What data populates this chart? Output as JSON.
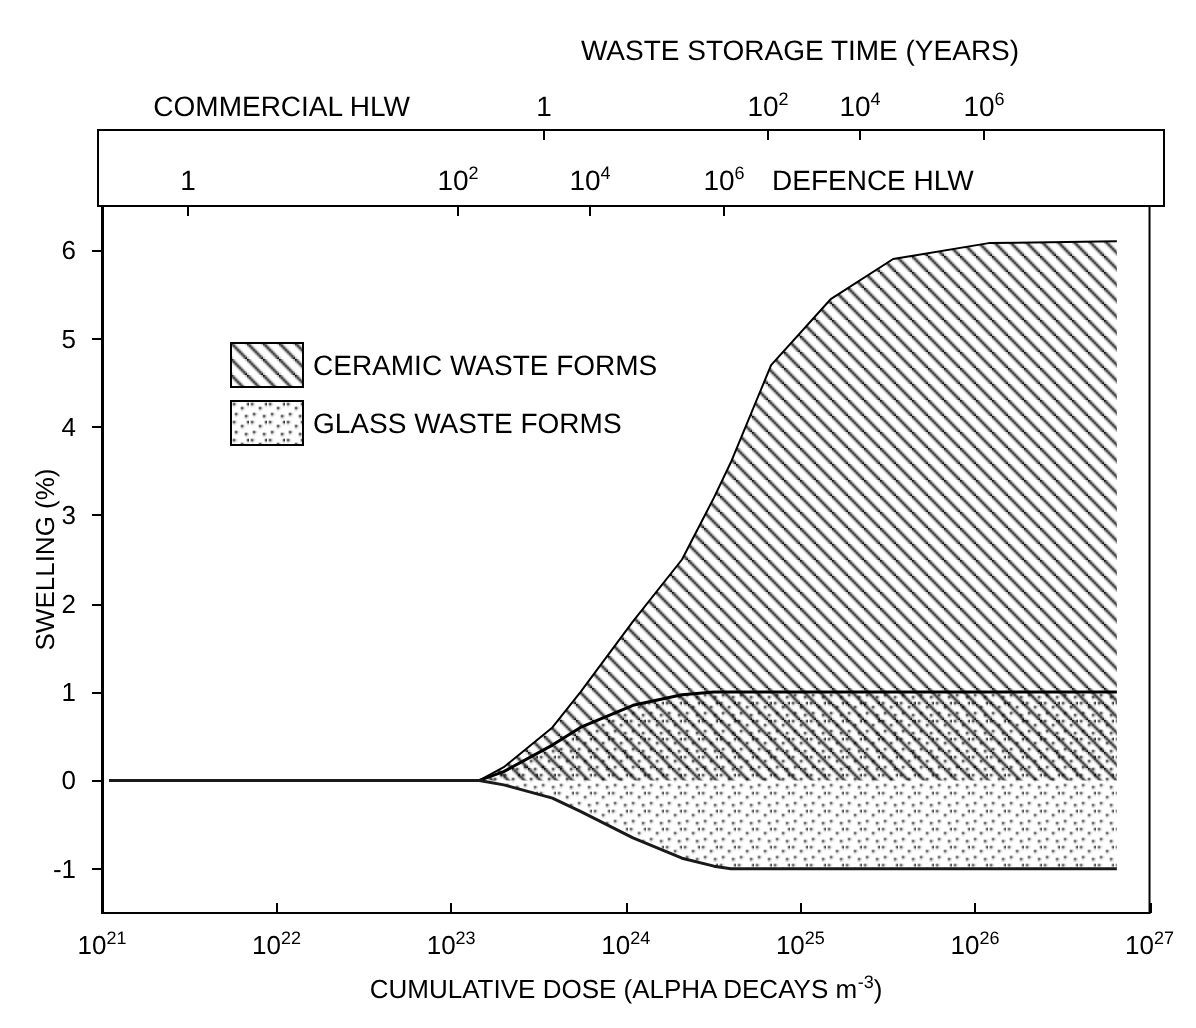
{
  "chart_data": {
    "type": "area",
    "xlabel": "CUMULATIVE DOSE (ALPHA DECAYS m$^{-3}$)",
    "ylabel": "SWELLING (%)",
    "x2label": "WASTE STORAGE TIME (YEARS)",
    "annotations": [
      "COMMERCIAL HLW",
      "1",
      "10$^{2}$",
      "10$^{4}$",
      "10$^{6}$",
      "1",
      "10$^{2}$",
      "10$^{4}$",
      "10$^{6}$",
      "DEFENCE HLW"
    ],
    "log": "x",
    "legend": "top left",
    "grid": false,
    "marker": "none",
    "xlim": [
      1e+21,
      1e+27
    ],
    "xticks": [
      {
        "value": 1e+21,
        "label": "10$^{21}$"
      },
      {
        "value": 1e+22,
        "label": "10$^{22}$"
      },
      {
        "value": 1e+23,
        "label": "10$^{23}$"
      },
      {
        "value": 1e+24,
        "label": "10$^{24}$"
      },
      {
        "value": 1e+25,
        "label": "10$^{25}$"
      },
      {
        "value": 1e+26,
        "label": "10$^{26}$"
      },
      {
        "value": 1e+27,
        "label": "10$^{27}$"
      }
    ],
    "ylim": [
      -1.5,
      6.5
    ],
    "yticks": [
      -1,
      0,
      1,
      2,
      3,
      4,
      5,
      6
    ],
    "x": [
      1.1e+21,
      1.45e+23,
      2e+23,
      3.8e+23,
      5.5e+23,
      1.1e+24,
      2.1e+24,
      3.2e+24,
      4e+24,
      6.8e+24,
      1.5e+25,
      3.4e+25,
      1.2e+26,
      6.5e+26
    ],
    "series": [
      {
        "name": "CERAMIC WASTE FORMS",
        "color": "#000000",
        "values": [
          0,
          0,
          0.15,
          0.6,
          1.0,
          1.8,
          2.5,
          3.2,
          3.6,
          4.7,
          5.45,
          5.9,
          6.08,
          6.1
        ]
      },
      {
        "name": "GLASS WASTE FORMS",
        "color": "#000000",
        "values": [
          0,
          0,
          0.1,
          0.4,
          0.6,
          0.85,
          0.97,
          1.0,
          1.0,
          1.0,
          1.0,
          1.0,
          1.0,
          1.0
        ]
      },
      {
        "color": "#1a1a1a",
        "values": [
          0,
          0,
          -0.05,
          -0.2,
          -0.35,
          -0.65,
          -0.88,
          -0.97,
          -1.0,
          -1.0,
          -1.0,
          -1.0,
          -1.0,
          -1.0
        ]
      }
    ]
  }
}
